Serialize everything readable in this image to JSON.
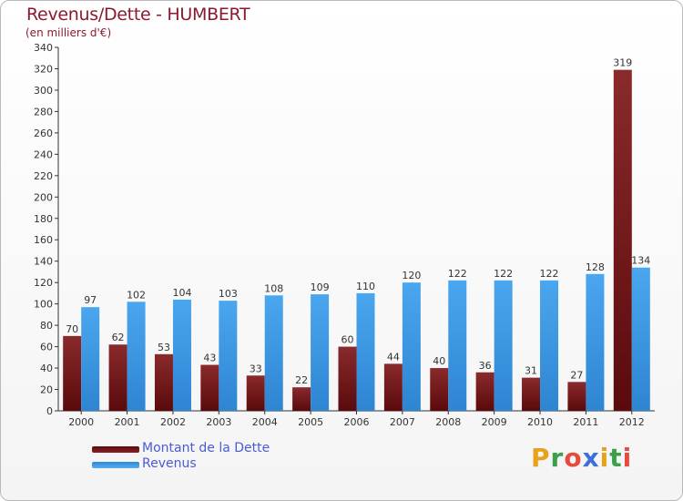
{
  "title": "Revenus/Dette - HUMBERT",
  "subtitle": "(en milliers d'€)",
  "colors": {
    "debt": "#7a1416",
    "revenue": "#3d9ae8",
    "title": "#8b1a2e",
    "legend_text": "#4b5bd8"
  },
  "chart_data": {
    "type": "bar",
    "categories": [
      "2000",
      "2001",
      "2002",
      "2003",
      "2004",
      "2005",
      "2006",
      "2007",
      "2008",
      "2009",
      "2010",
      "2011",
      "2012"
    ],
    "series": [
      {
        "name": "Montant de la Dette",
        "values": [
          70,
          62,
          53,
          43,
          33,
          22,
          60,
          44,
          40,
          36,
          31,
          27,
          319
        ]
      },
      {
        "name": "Revenus",
        "values": [
          97,
          102,
          104,
          103,
          108,
          109,
          110,
          120,
          122,
          122,
          122,
          128,
          134
        ]
      }
    ],
    "ylim": [
      0,
      340
    ],
    "yticks": [
      0,
      20,
      40,
      60,
      80,
      100,
      120,
      140,
      160,
      180,
      200,
      220,
      240,
      260,
      280,
      300,
      320,
      340
    ],
    "grid": false,
    "legend": "bottom-left"
  },
  "legend": {
    "debt_label": "Montant de la Dette",
    "revenue_label": "Revenus"
  },
  "logo": {
    "letters": [
      "P",
      "r",
      "o",
      "x",
      "i",
      "t",
      "i"
    ],
    "colors": [
      "#e8a21a",
      "#3aa14a",
      "#e64b3c",
      "#3d6fd8",
      "#e8a21a",
      "#3aa14a",
      "#e64b3c"
    ]
  }
}
